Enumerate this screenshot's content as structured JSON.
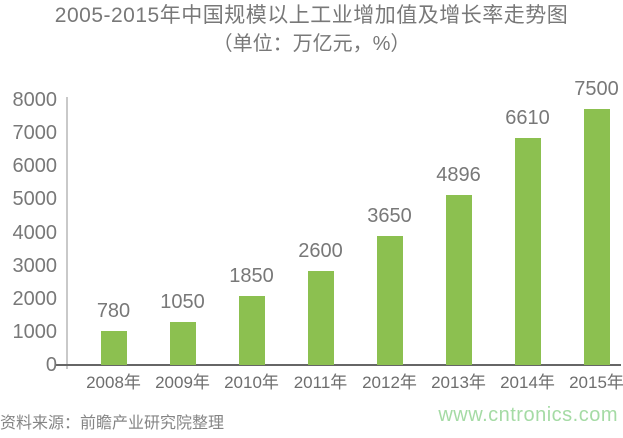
{
  "title": {
    "line1": "2005-2015年中国规模以上工业增加值及增长率走势图",
    "line2": "（单位：万亿元，%）"
  },
  "footer": {
    "source": "资料来源：前瞻产业研究院整理",
    "watermark": "www.cntronics.com"
  },
  "colors": {
    "bar": "#8cc050",
    "label_gray": "#787878",
    "x_axis": "#666666",
    "y_axis": "#c9c9c9",
    "watermark_green": "#a5dba5"
  },
  "chart_data": {
    "type": "bar",
    "title": "2005-2015年中国规模以上工业增加值及增长率走势图（单位：万亿元，%）",
    "categories": [
      "2008年",
      "2009年",
      "2010年",
      "2011年",
      "2012年",
      "2013年",
      "2014年",
      "2015年"
    ],
    "values": [
      780,
      1050,
      1850,
      2600,
      3650,
      4896,
      6610,
      7500
    ],
    "xlabel": "",
    "ylabel": "",
    "ylim": [
      0,
      8000
    ],
    "ytick_step": 1000,
    "yticks": [
      "0",
      "1000",
      "2000",
      "3000",
      "4000",
      "5000",
      "6000",
      "7000",
      "8000"
    ],
    "grid": false,
    "legend_position": "none",
    "bar_color": "#8cc050",
    "value_labels_shown": true
  }
}
